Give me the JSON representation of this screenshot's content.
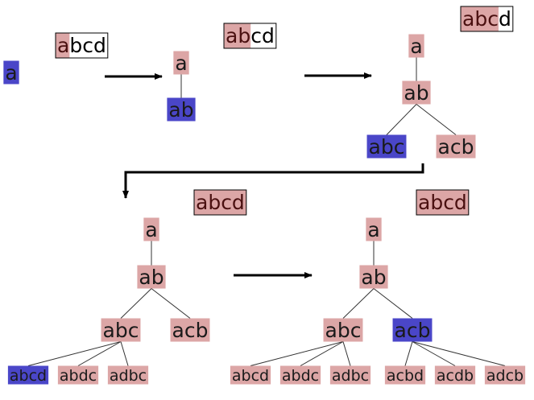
{
  "colors": {
    "node_pink": "#dca6a6",
    "node_blue": "#4a46c8",
    "text_dark": "#1a1a1a",
    "header_fill": "#dca6a6",
    "header_text_dark": "#4a1010",
    "edge": "#333333",
    "arrow": "#000000"
  },
  "headers": [
    {
      "id": "h1",
      "highlighted": "a",
      "rest": "bcd"
    },
    {
      "id": "h2",
      "highlighted": "ab",
      "rest": "cd"
    },
    {
      "id": "h3",
      "highlighted": "abc",
      "rest": "d"
    },
    {
      "id": "h4",
      "highlighted": "abcd",
      "rest": ""
    },
    {
      "id": "h5",
      "highlighted": "abcd",
      "rest": ""
    }
  ],
  "stages": [
    {
      "id": "stage1",
      "nodes": [
        {
          "id": "s1-a",
          "label": "a",
          "state": "active"
        }
      ],
      "edges": []
    },
    {
      "id": "stage2",
      "nodes": [
        {
          "id": "s2-a",
          "label": "a",
          "state": "visited"
        },
        {
          "id": "s2-ab",
          "label": "ab",
          "state": "active"
        }
      ],
      "edges": [
        [
          "s2-a",
          "s2-ab"
        ]
      ]
    },
    {
      "id": "stage3",
      "nodes": [
        {
          "id": "s3-a",
          "label": "a",
          "state": "visited"
        },
        {
          "id": "s3-ab",
          "label": "ab",
          "state": "visited"
        },
        {
          "id": "s3-abc",
          "label": "abc",
          "state": "active"
        },
        {
          "id": "s3-acb",
          "label": "acb",
          "state": "visited"
        }
      ],
      "edges": [
        [
          "s3-a",
          "s3-ab"
        ],
        [
          "s3-ab",
          "s3-abc"
        ],
        [
          "s3-ab",
          "s3-acb"
        ]
      ]
    },
    {
      "id": "stage4",
      "nodes": [
        {
          "id": "s4-a",
          "label": "a",
          "state": "visited"
        },
        {
          "id": "s4-ab",
          "label": "ab",
          "state": "visited"
        },
        {
          "id": "s4-abc",
          "label": "abc",
          "state": "visited"
        },
        {
          "id": "s4-acb",
          "label": "acb",
          "state": "visited"
        },
        {
          "id": "s4-abcd",
          "label": "abcd",
          "state": "active"
        },
        {
          "id": "s4-abdc",
          "label": "abdc",
          "state": "visited"
        },
        {
          "id": "s4-adbc",
          "label": "adbc",
          "state": "visited"
        }
      ],
      "edges": [
        [
          "s4-a",
          "s4-ab"
        ],
        [
          "s4-ab",
          "s4-abc"
        ],
        [
          "s4-ab",
          "s4-acb"
        ],
        [
          "s4-abc",
          "s4-abcd"
        ],
        [
          "s4-abc",
          "s4-abdc"
        ],
        [
          "s4-abc",
          "s4-adbc"
        ]
      ]
    },
    {
      "id": "stage5",
      "nodes": [
        {
          "id": "s5-a",
          "label": "a",
          "state": "visited"
        },
        {
          "id": "s5-ab",
          "label": "ab",
          "state": "visited"
        },
        {
          "id": "s5-abc",
          "label": "abc",
          "state": "visited"
        },
        {
          "id": "s5-acb",
          "label": "acb",
          "state": "active"
        },
        {
          "id": "s5-abcd",
          "label": "abcd",
          "state": "visited"
        },
        {
          "id": "s5-abdc",
          "label": "abdc",
          "state": "visited"
        },
        {
          "id": "s5-adbc",
          "label": "adbc",
          "state": "visited"
        },
        {
          "id": "s5-acbd",
          "label": "acbd",
          "state": "visited"
        },
        {
          "id": "s5-acdb",
          "label": "acdb",
          "state": "visited"
        },
        {
          "id": "s5-adcb",
          "label": "adcb",
          "state": "visited"
        }
      ],
      "edges": [
        [
          "s5-a",
          "s5-ab"
        ],
        [
          "s5-ab",
          "s5-abc"
        ],
        [
          "s5-ab",
          "s5-acb"
        ],
        [
          "s5-abc",
          "s5-abcd"
        ],
        [
          "s5-abc",
          "s5-abdc"
        ],
        [
          "s5-abc",
          "s5-adbc"
        ],
        [
          "s5-acb",
          "s5-acbd"
        ],
        [
          "s5-acb",
          "s5-acdb"
        ],
        [
          "s5-acb",
          "s5-adcb"
        ]
      ]
    }
  ]
}
